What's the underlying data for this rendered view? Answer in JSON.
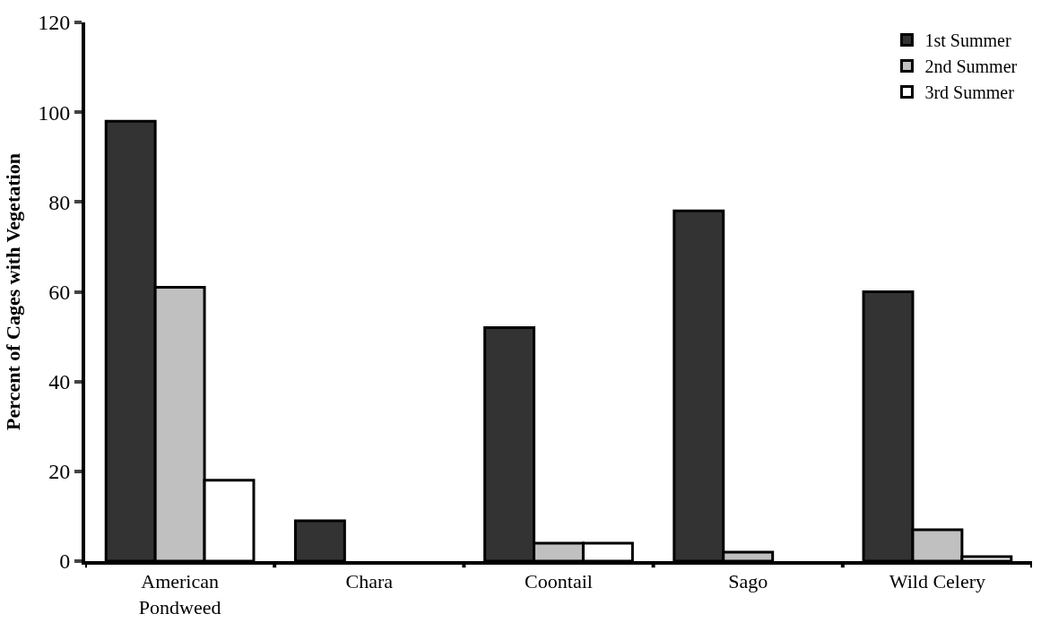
{
  "chart_data": {
    "type": "bar",
    "ylabel": "Percent of Cages with Vegetation",
    "categories": [
      "American\nPondweed",
      "Chara",
      "Coontail",
      "Sago",
      "Wild Celery"
    ],
    "series": [
      {
        "name": "1st Summer",
        "color": "#333333",
        "values": [
          98,
          9,
          52,
          78,
          60
        ]
      },
      {
        "name": "2nd Summer",
        "color": "#c0c0c0",
        "values": [
          61,
          0,
          4,
          2,
          7
        ]
      },
      {
        "name": "3rd Summer",
        "color": "#ffffff",
        "values": [
          18,
          0,
          4,
          0,
          1
        ]
      }
    ],
    "ylim": [
      0,
      120
    ],
    "yticks": [
      0,
      20,
      40,
      60,
      80,
      100,
      120
    ],
    "legend": "top right"
  }
}
